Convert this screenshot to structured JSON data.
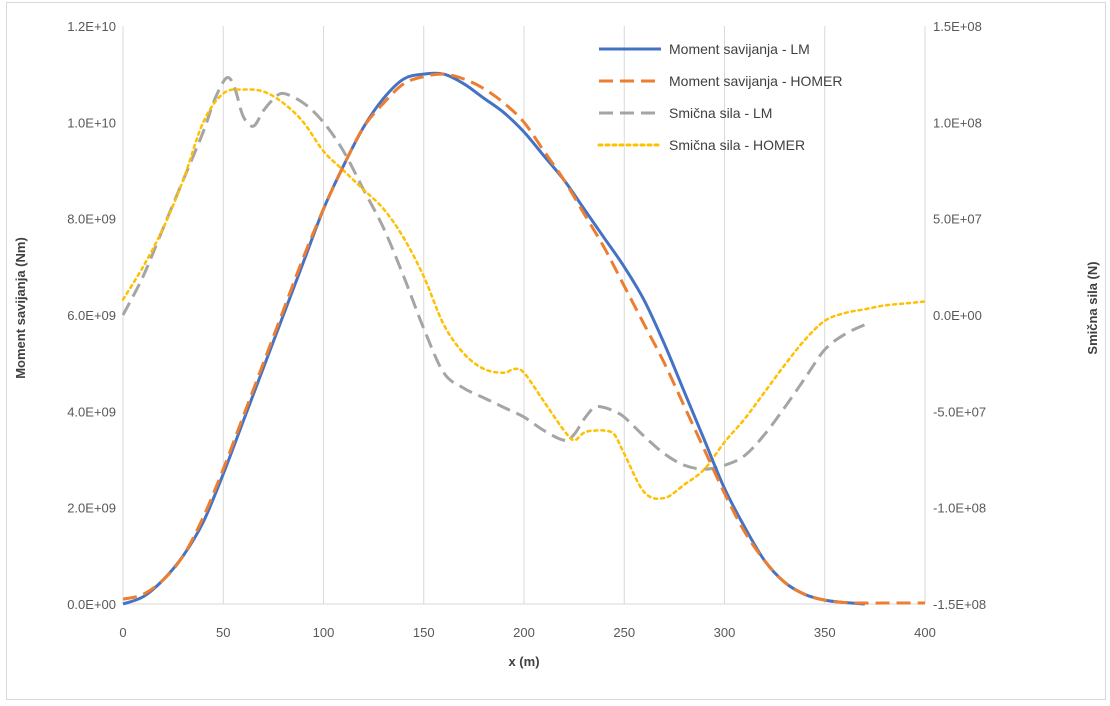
{
  "chart_data": {
    "type": "line",
    "title": "",
    "xlabel": "x (m)",
    "ylabel": "Moment savijanja (Nm)",
    "y2label": "Smična sila (N)",
    "xlim": [
      0,
      400
    ],
    "xticks": [
      0,
      50,
      100,
      150,
      200,
      250,
      300,
      350,
      400
    ],
    "xtick_labels": [
      "0",
      "50",
      "100",
      "150",
      "200",
      "250",
      "300",
      "350",
      "400"
    ],
    "ylim": [
      0,
      12000000000
    ],
    "yticks": [
      0,
      2000000000,
      4000000000,
      6000000000,
      8000000000,
      10000000000,
      12000000000
    ],
    "ytick_labels": [
      "0.0E+00",
      "2.0E+09",
      "4.0E+09",
      "6.0E+09",
      "8.0E+09",
      "1.0E+10",
      "1.2E+10"
    ],
    "y2lim": [
      -150000000,
      150000000
    ],
    "y2ticks": [
      -150000000,
      -100000000,
      -50000000,
      0,
      50000000,
      100000000,
      150000000
    ],
    "y2tick_labels": [
      "-1.5E+08",
      "-1.0E+08",
      "-5.0E+07",
      "0.0E+00",
      "5.0E+07",
      "1.0E+08",
      "1.5E+08"
    ],
    "grid": "vertical",
    "legend_position": "top-right",
    "series": [
      {
        "name": "Moment savijanja - LM",
        "axis": "left",
        "color": "#4472c4",
        "style": "solid",
        "x": [
          0,
          10,
          20,
          30,
          40,
          50,
          60,
          70,
          80,
          90,
          100,
          110,
          120,
          130,
          140,
          150,
          160,
          170,
          180,
          190,
          200,
          210,
          220,
          230,
          240,
          250,
          260,
          270,
          280,
          290,
          300,
          310,
          320,
          330,
          340,
          350,
          360,
          370
        ],
        "y": [
          0,
          150000000,
          500000000,
          1000000000,
          1700000000,
          2700000000,
          3800000000,
          4900000000,
          6000000000,
          7100000000,
          8200000000,
          9100000000,
          9900000000,
          10500000000,
          10900000000,
          11000000000,
          11000000000,
          10800000000,
          10500000000,
          10200000000,
          9800000000,
          9300000000,
          8800000000,
          8200000000,
          7600000000,
          7000000000,
          6300000000,
          5400000000,
          4400000000,
          3400000000,
          2400000000,
          1600000000,
          900000000,
          450000000,
          200000000,
          80000000,
          30000000,
          0
        ]
      },
      {
        "name": "Moment savijanja - HOMER",
        "axis": "left",
        "color": "#ed7d31",
        "style": "dashed",
        "x": [
          0,
          10,
          20,
          30,
          40,
          50,
          60,
          70,
          80,
          90,
          100,
          110,
          120,
          130,
          140,
          150,
          160,
          170,
          180,
          190,
          200,
          210,
          220,
          230,
          240,
          250,
          260,
          270,
          280,
          290,
          300,
          310,
          320,
          330,
          340,
          350,
          360,
          370,
          380,
          390,
          400
        ],
        "y": [
          100000000,
          200000000,
          500000000,
          1000000000,
          1800000000,
          2800000000,
          3900000000,
          5000000000,
          6100000000,
          7200000000,
          8200000000,
          9100000000,
          9900000000,
          10400000000,
          10800000000,
          10950000000,
          11000000000,
          10900000000,
          10700000000,
          10400000000,
          10000000000,
          9400000000,
          8800000000,
          8100000000,
          7400000000,
          6600000000,
          5800000000,
          5000000000,
          4100000000,
          3200000000,
          2300000000,
          1500000000,
          900000000,
          450000000,
          200000000,
          80000000,
          30000000,
          20000000,
          20000000,
          20000000,
          20000000
        ]
      },
      {
        "name": "Smična sila - LM",
        "axis": "right",
        "color": "#a5a5a5",
        "style": "dashed",
        "x": [
          0,
          10,
          20,
          30,
          40,
          45,
          50,
          53,
          56,
          60,
          65,
          70,
          75,
          80,
          90,
          100,
          110,
          120,
          130,
          140,
          150,
          160,
          170,
          180,
          190,
          200,
          210,
          220,
          225,
          230,
          235,
          240,
          245,
          250,
          260,
          270,
          280,
          290,
          300,
          310,
          320,
          330,
          340,
          350,
          360,
          370
        ],
        "y": [
          0,
          20000000,
          45000000,
          70000000,
          95000000,
          110000000,
          121000000,
          123000000,
          117000000,
          103000000,
          98000000,
          106000000,
          112000000,
          115000000,
          110000000,
          100000000,
          85000000,
          65000000,
          45000000,
          20000000,
          -7000000,
          -30000000,
          -38000000,
          -43000000,
          -48000000,
          -53000000,
          -60000000,
          -65000000,
          -62000000,
          -54000000,
          -48000000,
          -48000000,
          -50000000,
          -53000000,
          -63000000,
          -72000000,
          -78000000,
          -80000000,
          -78000000,
          -73000000,
          -62000000,
          -48000000,
          -33000000,
          -18000000,
          -10000000,
          -5000000
        ]
      },
      {
        "name": "Smična sila - HOMER",
        "axis": "right",
        "color": "#ffc000",
        "style": "dotted",
        "x": [
          0,
          10,
          20,
          30,
          40,
          50,
          60,
          70,
          80,
          90,
          100,
          110,
          120,
          130,
          140,
          150,
          160,
          170,
          180,
          190,
          195,
          200,
          210,
          220,
          225,
          230,
          235,
          240,
          245,
          250,
          260,
          270,
          280,
          290,
          300,
          310,
          320,
          330,
          340,
          350,
          360,
          370,
          380,
          390,
          400
        ],
        "y": [
          8000000,
          25000000,
          45000000,
          70000000,
          100000000,
          115000000,
          117000000,
          116000000,
          110000000,
          100000000,
          85000000,
          75000000,
          65000000,
          55000000,
          40000000,
          20000000,
          -5000000,
          -20000000,
          -28000000,
          -30000000,
          -28000000,
          -30000000,
          -45000000,
          -60000000,
          -65000000,
          -61000000,
          -60000000,
          -60000000,
          -62000000,
          -72000000,
          -92000000,
          -95000000,
          -88000000,
          -80000000,
          -66000000,
          -54000000,
          -40000000,
          -26000000,
          -13000000,
          -3000000,
          1000000,
          3000000,
          5000000,
          6000000,
          7000000
        ]
      }
    ]
  }
}
